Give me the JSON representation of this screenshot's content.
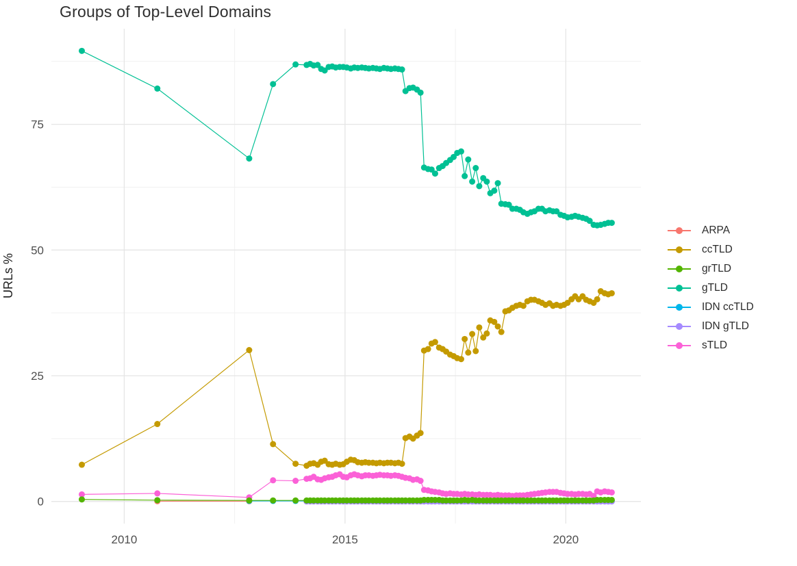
{
  "chart_data": {
    "type": "scatter",
    "title": "Groups of Top-Level Domains",
    "xlabel": "",
    "ylabel": "URLs %",
    "xlim": [
      2008.35,
      2021.7
    ],
    "ylim": [
      -4.4,
      94.0
    ],
    "x_ticks": [
      2010,
      2015,
      2020
    ],
    "x_minor_ticks": [
      2012.5,
      2017.5
    ],
    "y_ticks": [
      0,
      25,
      50,
      75
    ],
    "y_minor_ticks": [
      12.5,
      37.5,
      62.5,
      87.5
    ],
    "grid": true,
    "legend_position": "right",
    "background": "#ffffff",
    "major_grid_color": "#e5e5e5",
    "minor_grid_color": "#f1f1f1",
    "tick_label_color": "#4e4e4e",
    "draw_order": [
      0,
      4,
      5,
      3,
      1,
      6,
      2
    ],
    "series": [
      {
        "name": "ARPA",
        "color": "#f8766d",
        "x": [
          2010.75,
          2012.83
        ],
        "y": [
          0.05,
          0.05
        ]
      },
      {
        "name": "ccTLD",
        "color": "#c49a00",
        "x": [
          2009.04,
          2010.75,
          2012.83,
          2013.37,
          2013.88,
          2014.13,
          2014.21,
          2014.29,
          2014.38,
          2014.46,
          2014.54,
          2014.63,
          2014.71,
          2014.79,
          2014.88,
          2014.96,
          2015.04,
          2015.13,
          2015.21,
          2015.29,
          2015.38,
          2015.46,
          2015.54,
          2015.63,
          2015.71,
          2015.79,
          2015.88,
          2015.96,
          2016.04,
          2016.13,
          2016.21,
          2016.29,
          2016.37,
          2016.46,
          2016.54,
          2016.63,
          2016.71,
          2016.79,
          2016.88,
          2016.96,
          2017.04,
          2017.13,
          2017.21,
          2017.29,
          2017.38,
          2017.46,
          2017.54,
          2017.63,
          2017.71,
          2017.79,
          2017.88,
          2017.96,
          2018.04,
          2018.13,
          2018.21,
          2018.29,
          2018.38,
          2018.46,
          2018.54,
          2018.63,
          2018.71,
          2018.79,
          2018.88,
          2018.96,
          2019.04,
          2019.13,
          2019.21,
          2019.29,
          2019.38,
          2019.46,
          2019.54,
          2019.63,
          2019.71,
          2019.79,
          2019.88,
          2019.96,
          2020.04,
          2020.13,
          2020.21,
          2020.29,
          2020.38,
          2020.46,
          2020.54,
          2020.63,
          2020.71,
          2020.79,
          2020.88,
          2020.96,
          2021.04
        ],
        "y": [
          7.3,
          15.4,
          30.1,
          11.4,
          7.5,
          7.1,
          7.5,
          7.6,
          7.3,
          7.9,
          8.1,
          7.4,
          7.3,
          7.5,
          7.3,
          7.4,
          7.9,
          8.3,
          8.2,
          7.8,
          7.7,
          7.8,
          7.7,
          7.7,
          7.6,
          7.7,
          7.6,
          7.7,
          7.7,
          7.6,
          7.7,
          7.5,
          12.6,
          12.9,
          12.5,
          13.1,
          13.6,
          30.0,
          30.3,
          31.4,
          31.7,
          30.6,
          30.3,
          29.8,
          29.2,
          28.9,
          28.5,
          28.3,
          32.3,
          29.6,
          33.3,
          29.9,
          34.6,
          32.6,
          33.4,
          36.0,
          35.7,
          34.8,
          33.7,
          37.8,
          38.0,
          38.5,
          38.9,
          39.1,
          38.9,
          39.8,
          40.1,
          40.1,
          39.8,
          39.5,
          39.1,
          39.4,
          38.9,
          39.1,
          38.9,
          39.1,
          39.5,
          40.2,
          40.8,
          40.2,
          40.8,
          40.1,
          39.8,
          39.5,
          40.2,
          41.8,
          41.4,
          41.2,
          41.4
        ]
      },
      {
        "name": "grTLD",
        "color": "#53b400",
        "x": [
          2009.04,
          2010.75,
          2012.83,
          2013.37,
          2013.88,
          2014.13,
          2014.21,
          2014.29,
          2014.38,
          2014.46,
          2014.54,
          2014.63,
          2014.71,
          2014.79,
          2014.88,
          2014.96,
          2015.04,
          2015.13,
          2015.21,
          2015.29,
          2015.38,
          2015.46,
          2015.54,
          2015.63,
          2015.71,
          2015.79,
          2015.88,
          2015.96,
          2016.04,
          2016.13,
          2016.21,
          2016.29,
          2016.37,
          2016.46,
          2016.54,
          2016.63,
          2016.71,
          2016.79,
          2016.88,
          2016.96,
          2017.04,
          2017.13,
          2017.21,
          2017.29,
          2017.38,
          2017.46,
          2017.54,
          2017.63,
          2017.71,
          2017.79,
          2017.88,
          2017.96,
          2018.04,
          2018.13,
          2018.21,
          2018.29,
          2018.38,
          2018.46,
          2018.54,
          2018.63,
          2018.71,
          2018.79,
          2018.88,
          2018.96,
          2019.04,
          2019.13,
          2019.21,
          2019.29,
          2019.38,
          2019.46,
          2019.54,
          2019.63,
          2019.71,
          2019.79,
          2019.88,
          2019.96,
          2020.04,
          2020.13,
          2020.21,
          2020.29,
          2020.38,
          2020.46,
          2020.54,
          2020.63,
          2020.71,
          2020.79,
          2020.88,
          2020.96,
          2021.04
        ],
        "y": [
          0.4,
          0.25,
          0.2,
          0.2,
          0.2,
          0.2,
          0.2,
          0.2,
          0.2,
          0.2,
          0.2,
          0.2,
          0.2,
          0.2,
          0.2,
          0.2,
          0.2,
          0.2,
          0.2,
          0.2,
          0.2,
          0.2,
          0.2,
          0.2,
          0.2,
          0.2,
          0.2,
          0.2,
          0.2,
          0.2,
          0.2,
          0.2,
          0.2,
          0.2,
          0.2,
          0.2,
          0.2,
          0.3,
          0.3,
          0.3,
          0.3,
          0.3,
          0.2,
          0.2,
          0.2,
          0.2,
          0.2,
          0.2,
          0.3,
          0.2,
          0.3,
          0.2,
          0.2,
          0.2,
          0.2,
          0.2,
          0.2,
          0.2,
          0.2,
          0.2,
          0.2,
          0.2,
          0.2,
          0.2,
          0.2,
          0.2,
          0.2,
          0.2,
          0.2,
          0.2,
          0.2,
          0.2,
          0.2,
          0.2,
          0.2,
          0.2,
          0.2,
          0.2,
          0.2,
          0.2,
          0.2,
          0.2,
          0.2,
          0.2,
          0.3,
          0.3,
          0.3,
          0.3,
          0.3
        ]
      },
      {
        "name": "gTLD",
        "color": "#00c094",
        "x": [
          2009.04,
          2010.75,
          2012.83,
          2013.37,
          2013.88,
          2014.13,
          2014.21,
          2014.29,
          2014.38,
          2014.46,
          2014.54,
          2014.63,
          2014.71,
          2014.79,
          2014.88,
          2014.96,
          2015.04,
          2015.13,
          2015.21,
          2015.29,
          2015.38,
          2015.46,
          2015.54,
          2015.63,
          2015.71,
          2015.79,
          2015.88,
          2015.96,
          2016.04,
          2016.13,
          2016.21,
          2016.29,
          2016.37,
          2016.46,
          2016.54,
          2016.63,
          2016.71,
          2016.79,
          2016.88,
          2016.96,
          2017.04,
          2017.13,
          2017.21,
          2017.29,
          2017.38,
          2017.46,
          2017.54,
          2017.63,
          2017.71,
          2017.79,
          2017.88,
          2017.96,
          2018.04,
          2018.13,
          2018.21,
          2018.29,
          2018.38,
          2018.46,
          2018.54,
          2018.63,
          2018.71,
          2018.79,
          2018.88,
          2018.96,
          2019.04,
          2019.13,
          2019.21,
          2019.29,
          2019.38,
          2019.46,
          2019.54,
          2019.63,
          2019.71,
          2019.79,
          2019.88,
          2019.96,
          2020.04,
          2020.13,
          2020.21,
          2020.29,
          2020.38,
          2020.46,
          2020.54,
          2020.63,
          2020.71,
          2020.79,
          2020.88,
          2020.96,
          2021.04
        ],
        "y": [
          89.6,
          82.1,
          68.2,
          83.0,
          86.9,
          86.8,
          87.0,
          86.7,
          86.8,
          86.0,
          85.7,
          86.4,
          86.5,
          86.3,
          86.4,
          86.4,
          86.3,
          86.1,
          86.3,
          86.2,
          86.3,
          86.2,
          86.1,
          86.2,
          86.1,
          86.0,
          86.2,
          86.1,
          86.0,
          86.1,
          86.0,
          85.9,
          81.6,
          82.2,
          82.3,
          81.9,
          81.3,
          66.4,
          66.1,
          66.0,
          65.2,
          66.3,
          66.7,
          67.3,
          67.9,
          68.5,
          69.3,
          69.6,
          64.7,
          68.0,
          63.6,
          66.3,
          62.7,
          64.3,
          63.6,
          61.3,
          61.8,
          63.3,
          59.2,
          59.1,
          59.0,
          58.2,
          58.2,
          58.0,
          57.5,
          57.2,
          57.5,
          57.7,
          58.2,
          58.2,
          57.7,
          57.9,
          57.7,
          57.7,
          57.0,
          56.8,
          56.5,
          56.6,
          56.8,
          56.6,
          56.4,
          56.2,
          55.8,
          55.0,
          54.9,
          55.0,
          55.2,
          55.4,
          55.4
        ]
      },
      {
        "name": "IDN ccTLD",
        "color": "#00b6eb",
        "x": [
          2012.83,
          2013.37,
          2013.88,
          2014.13,
          2014.38,
          2014.63,
          2014.88,
          2015.13,
          2015.38,
          2015.63,
          2015.88,
          2016.13,
          2016.37,
          2016.63,
          2016.88,
          2017.13,
          2017.38,
          2017.63,
          2017.88,
          2018.13,
          2018.38,
          2018.63,
          2018.88,
          2019.13,
          2019.38,
          2019.63,
          2019.88,
          2020.13,
          2020.38,
          2020.63,
          2020.88,
          2021.04
        ],
        "y_const": 0.1
      },
      {
        "name": "IDN gTLD",
        "color": "#a58aff",
        "x": [
          2014.13,
          2014.21,
          2014.29,
          2014.38,
          2014.46,
          2014.54,
          2014.63,
          2014.71,
          2014.79,
          2014.88,
          2014.96,
          2015.04,
          2015.13,
          2015.21,
          2015.29,
          2015.38,
          2015.46,
          2015.54,
          2015.63,
          2015.71,
          2015.79,
          2015.88,
          2015.96,
          2016.04,
          2016.13,
          2016.21,
          2016.29,
          2016.37,
          2016.46,
          2016.54,
          2016.63,
          2016.71,
          2016.79,
          2016.88,
          2016.96,
          2017.04,
          2017.13,
          2017.21,
          2017.29,
          2017.38,
          2017.46,
          2017.54,
          2017.63,
          2017.71,
          2017.79,
          2017.88,
          2017.96,
          2018.04,
          2018.13,
          2018.21,
          2018.29,
          2018.38,
          2018.46,
          2018.54,
          2018.63,
          2018.71,
          2018.79,
          2018.88,
          2018.96,
          2019.04,
          2019.13,
          2019.21,
          2019.29,
          2019.38,
          2019.46,
          2019.54,
          2019.63,
          2019.71,
          2019.79,
          2019.88,
          2019.96,
          2020.04,
          2020.13,
          2020.21,
          2020.29,
          2020.38,
          2020.46,
          2020.54,
          2020.63,
          2020.71,
          2020.79,
          2020.88,
          2020.96,
          2021.04
        ],
        "y_const": 0.0
      },
      {
        "name": "sTLD",
        "color": "#fb61d7",
        "x": [
          2009.04,
          2010.75,
          2012.83,
          2013.37,
          2013.88,
          2014.13,
          2014.21,
          2014.29,
          2014.38,
          2014.46,
          2014.54,
          2014.63,
          2014.71,
          2014.79,
          2014.88,
          2014.96,
          2015.04,
          2015.13,
          2015.21,
          2015.29,
          2015.38,
          2015.46,
          2015.54,
          2015.63,
          2015.71,
          2015.79,
          2015.88,
          2015.96,
          2016.04,
          2016.13,
          2016.21,
          2016.29,
          2016.37,
          2016.46,
          2016.54,
          2016.63,
          2016.71,
          2016.79,
          2016.88,
          2016.96,
          2017.04,
          2017.13,
          2017.21,
          2017.29,
          2017.38,
          2017.46,
          2017.54,
          2017.63,
          2017.71,
          2017.79,
          2017.88,
          2017.96,
          2018.04,
          2018.13,
          2018.21,
          2018.29,
          2018.38,
          2018.46,
          2018.54,
          2018.63,
          2018.71,
          2018.79,
          2018.88,
          2018.96,
          2019.04,
          2019.13,
          2019.21,
          2019.29,
          2019.38,
          2019.46,
          2019.54,
          2019.63,
          2019.71,
          2019.79,
          2019.88,
          2019.96,
          2020.04,
          2020.13,
          2020.21,
          2020.29,
          2020.38,
          2020.46,
          2020.54,
          2020.63,
          2020.71,
          2020.79,
          2020.88,
          2020.96,
          2021.04
        ],
        "y": [
          1.4,
          1.6,
          0.8,
          4.2,
          4.1,
          4.5,
          4.6,
          4.9,
          4.4,
          4.3,
          4.6,
          4.8,
          4.9,
          5.2,
          5.4,
          4.9,
          4.8,
          5.2,
          5.4,
          5.2,
          5.0,
          5.2,
          5.2,
          5.1,
          5.2,
          5.3,
          5.2,
          5.2,
          5.1,
          5.2,
          5.1,
          4.9,
          4.7,
          4.6,
          4.3,
          4.4,
          4.1,
          2.3,
          2.2,
          2.0,
          1.9,
          1.8,
          1.6,
          1.5,
          1.6,
          1.5,
          1.5,
          1.4,
          1.5,
          1.4,
          1.4,
          1.3,
          1.4,
          1.3,
          1.3,
          1.3,
          1.2,
          1.3,
          1.2,
          1.2,
          1.2,
          1.1,
          1.2,
          1.2,
          1.2,
          1.3,
          1.4,
          1.5,
          1.6,
          1.7,
          1.8,
          1.9,
          1.9,
          1.9,
          1.7,
          1.6,
          1.5,
          1.5,
          1.4,
          1.5,
          1.5,
          1.4,
          1.5,
          1.1,
          2.0,
          1.8,
          2.0,
          1.9,
          1.8
        ]
      }
    ]
  }
}
